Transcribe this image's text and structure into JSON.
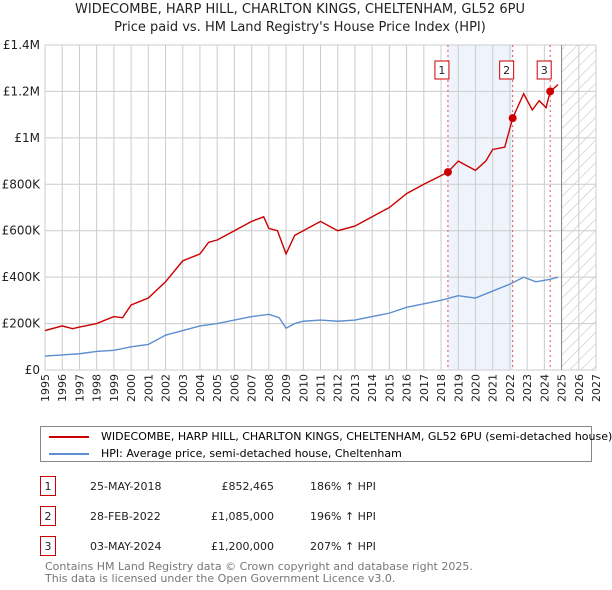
{
  "chart_data": {
    "type": "line",
    "title": "WIDECOMBE, HARP HILL, CHARLTON KINGS, CHELTENHAM, GL52 6PU",
    "subtitle": "Price paid vs. HM Land Registry's House Price Index (HPI)",
    "xlim": [
      1995,
      2027
    ],
    "ylim": [
      0,
      1400000
    ],
    "x_ticks": [
      "1995",
      "1996",
      "1997",
      "1998",
      "1999",
      "2000",
      "2001",
      "2002",
      "2003",
      "2004",
      "2005",
      "2006",
      "2007",
      "2008",
      "2009",
      "2010",
      "2011",
      "2012",
      "2013",
      "2014",
      "2015",
      "2016",
      "2017",
      "2018",
      "2019",
      "2020",
      "2021",
      "2022",
      "2023",
      "2024",
      "2025",
      "2026",
      "2027"
    ],
    "y_ticks": [
      {
        "v": 0,
        "l": "£0"
      },
      {
        "v": 200000,
        "l": "£200K"
      },
      {
        "v": 400000,
        "l": "£400K"
      },
      {
        "v": 600000,
        "l": "£600K"
      },
      {
        "v": 800000,
        "l": "£800K"
      },
      {
        "v": 1000000,
        "l": "£1M"
      },
      {
        "v": 1200000,
        "l": "£1.2M"
      },
      {
        "v": 1400000,
        "l": "£1.4M"
      }
    ],
    "grid": true,
    "future_hatch_from": 2025,
    "highlight_range": [
      2018.4,
      2022.16
    ],
    "series": [
      {
        "name": "WIDECOMBE, HARP HILL, CHARLTON KINGS, CHELTENHAM, GL52 6PU (semi-detached house)",
        "color": "#cc0000",
        "points": [
          [
            1995,
            170000
          ],
          [
            1996,
            190000
          ],
          [
            1996.6,
            178000
          ],
          [
            1997,
            185000
          ],
          [
            1998,
            200000
          ],
          [
            1999,
            230000
          ],
          [
            1999.5,
            225000
          ],
          [
            2000,
            280000
          ],
          [
            2001,
            310000
          ],
          [
            2002,
            380000
          ],
          [
            2003,
            470000
          ],
          [
            2004,
            500000
          ],
          [
            2004.5,
            550000
          ],
          [
            2005,
            560000
          ],
          [
            2006,
            600000
          ],
          [
            2007,
            640000
          ],
          [
            2007.7,
            660000
          ],
          [
            2008,
            610000
          ],
          [
            2008.5,
            600000
          ],
          [
            2009,
            500000
          ],
          [
            2009.5,
            580000
          ],
          [
            2010,
            600000
          ],
          [
            2011,
            640000
          ],
          [
            2012,
            600000
          ],
          [
            2013,
            620000
          ],
          [
            2014,
            660000
          ],
          [
            2015,
            700000
          ],
          [
            2016,
            760000
          ],
          [
            2017,
            800000
          ],
          [
            2017.8,
            830000
          ],
          [
            2018.4,
            852465
          ],
          [
            2019,
            900000
          ],
          [
            2020,
            860000
          ],
          [
            2020.6,
            900000
          ],
          [
            2021,
            950000
          ],
          [
            2021.7,
            960000
          ],
          [
            2022.16,
            1085000
          ],
          [
            2022.8,
            1190000
          ],
          [
            2023.3,
            1120000
          ],
          [
            2023.7,
            1160000
          ],
          [
            2024.1,
            1130000
          ],
          [
            2024.34,
            1200000
          ],
          [
            2024.8,
            1230000
          ]
        ]
      },
      {
        "name": "HPI: Average price, semi-detached house, Cheltenham",
        "color": "#5b8fd0",
        "points": [
          [
            1995,
            60000
          ],
          [
            1996,
            65000
          ],
          [
            1997,
            70000
          ],
          [
            1998,
            80000
          ],
          [
            1999,
            85000
          ],
          [
            2000,
            100000
          ],
          [
            2001,
            110000
          ],
          [
            2002,
            150000
          ],
          [
            2003,
            170000
          ],
          [
            2004,
            190000
          ],
          [
            2005,
            200000
          ],
          [
            2006,
            215000
          ],
          [
            2007,
            230000
          ],
          [
            2008,
            240000
          ],
          [
            2008.6,
            225000
          ],
          [
            2009,
            180000
          ],
          [
            2009.5,
            200000
          ],
          [
            2010,
            210000
          ],
          [
            2011,
            215000
          ],
          [
            2012,
            210000
          ],
          [
            2013,
            215000
          ],
          [
            2014,
            230000
          ],
          [
            2015,
            245000
          ],
          [
            2016,
            270000
          ],
          [
            2017,
            285000
          ],
          [
            2018,
            300000
          ],
          [
            2019,
            320000
          ],
          [
            2020,
            310000
          ],
          [
            2021,
            340000
          ],
          [
            2022,
            370000
          ],
          [
            2022.8,
            400000
          ],
          [
            2023.5,
            380000
          ],
          [
            2024.3,
            390000
          ],
          [
            2024.8,
            400000
          ]
        ]
      }
    ],
    "sales": [
      {
        "n": "1",
        "x": 2018.4,
        "date": "25-MAY-2018",
        "price_value": 852465,
        "price": "£852,465",
        "hpi": "186% ↑ HPI"
      },
      {
        "n": "2",
        "x": 2022.16,
        "date": "28-FEB-2022",
        "price_value": 1085000,
        "price": "£1,085,000",
        "hpi": "196% ↑ HPI"
      },
      {
        "n": "3",
        "x": 2024.34,
        "date": "03-MAY-2024",
        "price_value": 1200000,
        "price": "£1,200,000",
        "hpi": "207% ↑ HPI"
      }
    ]
  },
  "footer": {
    "line1": "Contains HM Land Registry data © Crown copyright and database right 2025.",
    "line2": "This data is licensed under the Open Government Licence v3.0."
  }
}
